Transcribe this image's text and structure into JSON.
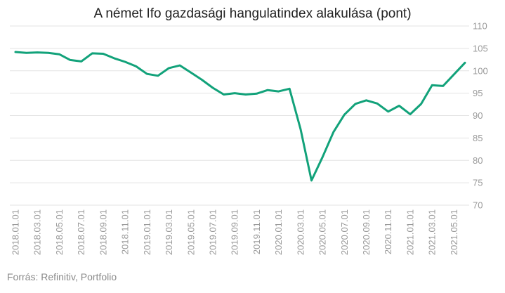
{
  "chart_data": {
    "type": "line",
    "title": "A német Ifo gazdasági hangulatindex alakulása (pont)",
    "source": "Forrás: Refinitiv, Portfolio",
    "ylim": [
      70,
      110
    ],
    "yticks": [
      70,
      75,
      80,
      85,
      90,
      95,
      100,
      105,
      110
    ],
    "grid": true,
    "line_color": "#12a27a",
    "x": [
      "2018.01.01",
      "2018.02.01",
      "2018.03.01",
      "2018.04.01",
      "2018.05.01",
      "2018.06.01",
      "2018.07.01",
      "2018.08.01",
      "2018.09.01",
      "2018.10.01",
      "2018.11.01",
      "2018.12.01",
      "2019.01.01",
      "2019.02.01",
      "2019.03.01",
      "2019.04.01",
      "2019.05.01",
      "2019.06.01",
      "2019.07.01",
      "2019.08.01",
      "2019.09.01",
      "2019.10.01",
      "2019.11.01",
      "2019.12.01",
      "2020.01.01",
      "2020.02.01",
      "2020.03.01",
      "2020.04.01",
      "2020.05.01",
      "2020.06.01",
      "2020.07.01",
      "2020.08.01",
      "2020.09.01",
      "2020.10.01",
      "2020.11.01",
      "2020.12.01",
      "2021.01.01",
      "2021.02.01",
      "2021.03.01",
      "2021.04.01",
      "2021.05.01",
      "2021.06.01"
    ],
    "xticks": [
      "2018.01.01",
      "2018.03.01",
      "2018.05.01",
      "2018.07.01",
      "2018.09.01",
      "2018.11.01",
      "2019.01.01",
      "2019.03.01",
      "2019.05.01",
      "2019.07.01",
      "2019.09.01",
      "2019.11.01",
      "2020.01.01",
      "2020.03.01",
      "2020.05.01",
      "2020.07.01",
      "2020.09.01",
      "2020.11.01",
      "2021.01.01",
      "2021.03.01",
      "2021.05.01"
    ],
    "series": [
      {
        "values": [
          104.2,
          104.0,
          104.1,
          104.0,
          103.7,
          102.4,
          102.1,
          103.9,
          103.8,
          102.8,
          102.0,
          101.0,
          99.3,
          98.9,
          100.6,
          101.2,
          99.6,
          98.0,
          96.2,
          94.7,
          95.0,
          94.7,
          94.9,
          95.7,
          95.4,
          96.0,
          87.0,
          75.5,
          80.7,
          86.3,
          90.2,
          92.6,
          93.4,
          92.7,
          90.9,
          92.2,
          90.3,
          92.6,
          96.8,
          96.6,
          99.2,
          101.8
        ]
      }
    ]
  }
}
